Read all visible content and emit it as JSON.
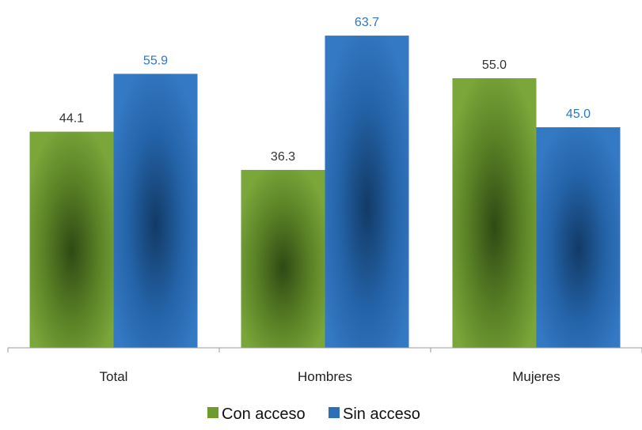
{
  "colors": {
    "con_acceso": "#6f9a2e",
    "sin_acceso": "#2e6fb8",
    "label_con_acceso": "#333333",
    "label_sin_acceso": "#2e77c4",
    "axis": "#999999"
  },
  "chart_data": {
    "type": "bar",
    "categories": [
      "Total",
      "Hombres",
      "Mujeres"
    ],
    "series": [
      {
        "name": "Con acceso",
        "values": [
          44.1,
          36.3,
          55.0
        ],
        "labels": [
          "44.1",
          "36.3",
          "55.0"
        ]
      },
      {
        "name": "Sin acceso",
        "values": [
          55.9,
          63.7,
          45.0
        ],
        "labels": [
          "55.9",
          "63.7",
          "45.0"
        ]
      }
    ],
    "ylim": [
      0,
      70
    ],
    "grid": false,
    "legend_position": "bottom",
    "title": "",
    "xlabel": "",
    "ylabel": ""
  }
}
